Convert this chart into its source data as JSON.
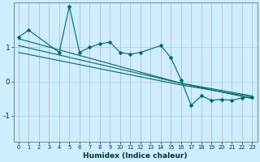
{
  "xlabel": "Humidex (Indice chaleur)",
  "bg_color": "#cceeff",
  "grid_color": "#aacccc",
  "line_color": "#006666",
  "xlim": [
    -0.5,
    23.5
  ],
  "ylim": [
    -1.75,
    2.3
  ],
  "yticks": [
    -1,
    0,
    1
  ],
  "xticks": [
    0,
    1,
    2,
    3,
    4,
    5,
    6,
    7,
    8,
    9,
    10,
    11,
    12,
    13,
    14,
    15,
    16,
    17,
    18,
    19,
    20,
    21,
    22,
    23
  ],
  "s_main_x": [
    0,
    1,
    4,
    5,
    6,
    7,
    8,
    9,
    10,
    11,
    12,
    14,
    15,
    16,
    17,
    18,
    19,
    20,
    21,
    22,
    23
  ],
  "s_main_y": [
    1.3,
    1.5,
    0.85,
    2.2,
    0.85,
    1.0,
    1.1,
    1.15,
    0.85,
    0.8,
    0.85,
    1.05,
    0.7,
    0.05,
    -0.7,
    -0.42,
    -0.55,
    -0.52,
    -0.55,
    -0.48,
    -0.45
  ],
  "s_trend1_x": [
    0,
    16,
    23
  ],
  "s_trend1_y": [
    1.25,
    -0.05,
    -0.5
  ],
  "s_trend2_x": [
    0,
    16,
    23
  ],
  "s_trend2_y": [
    1.05,
    -0.05,
    -0.42
  ],
  "s_trend3_x": [
    0,
    16,
    23
  ],
  "s_trend3_y": [
    0.85,
    -0.1,
    -0.45
  ],
  "red_vline_x": 0
}
